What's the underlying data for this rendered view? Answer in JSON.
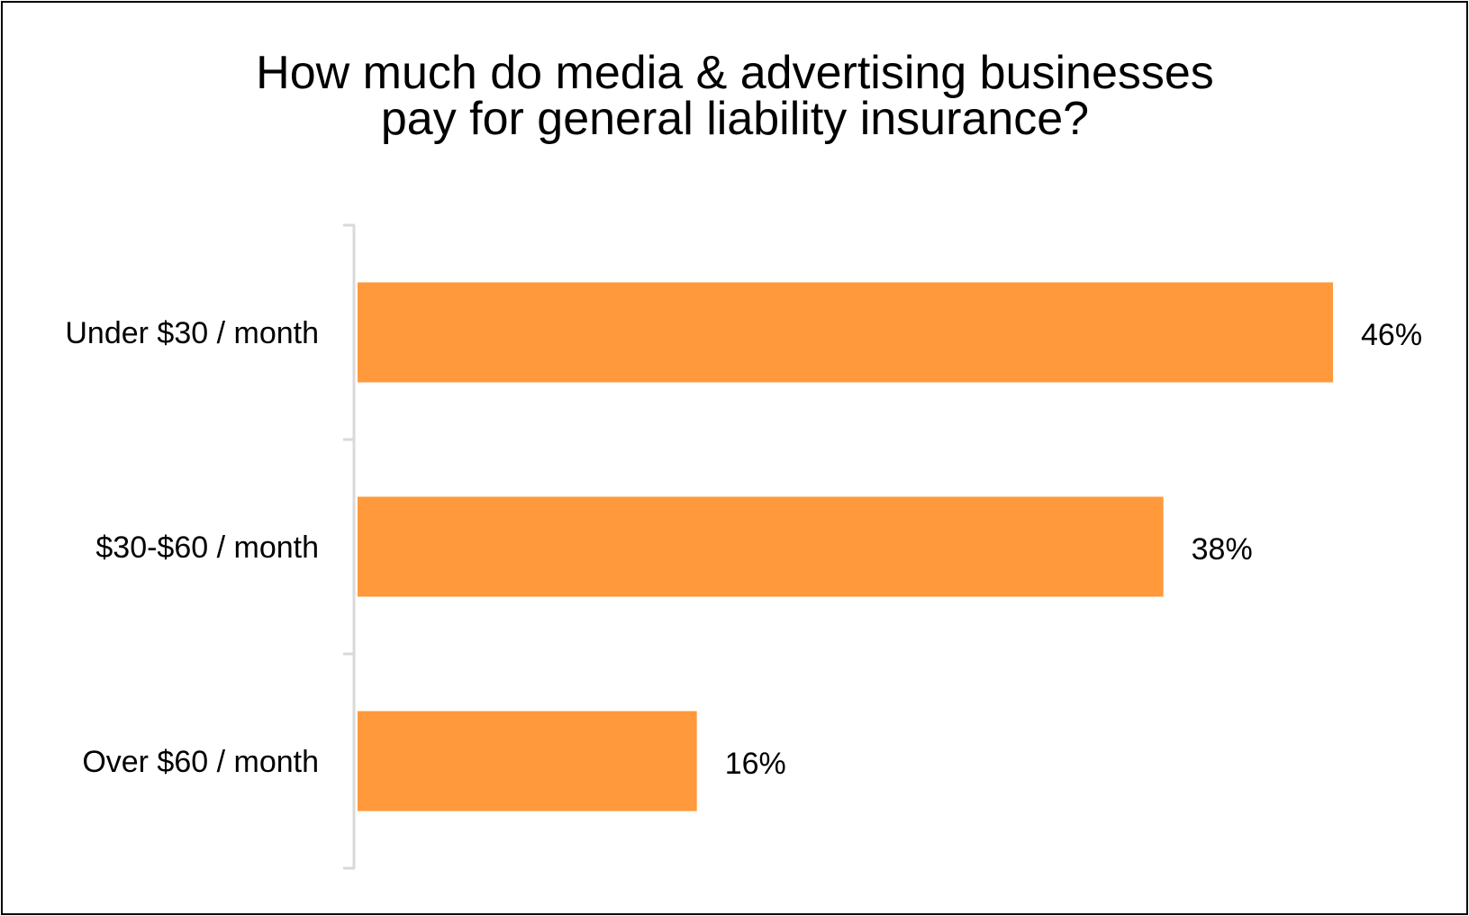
{
  "chart_data": {
    "type": "bar",
    "orientation": "horizontal",
    "title": [
      "How much do media & advertising businesses",
      "pay for general liability insurance?"
    ],
    "categories": [
      "Under $30 / month",
      "$30-$60 / month",
      "Over $60 / month"
    ],
    "values": [
      46,
      38,
      16
    ],
    "data_labels": [
      "46%",
      "38%",
      "16%"
    ],
    "unit": "%",
    "xlim": [
      0,
      46
    ],
    "grid": false,
    "legend": "none",
    "bar_color": "#FF993C",
    "axis_color": "#D9D9D9"
  }
}
